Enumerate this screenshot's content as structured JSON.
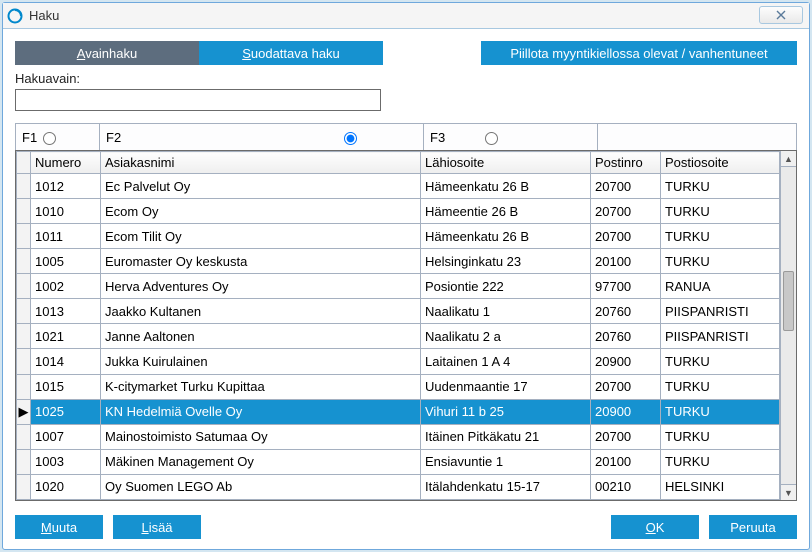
{
  "window": {
    "title": "Haku"
  },
  "tabs": {
    "avainhaku": {
      "underline": "A",
      "rest": "vainhaku"
    },
    "suodattava": {
      "underline": "S",
      "rest": "uodattava haku"
    },
    "piilota": "Piillota myyntikiellossa olevat / vanhentuneet"
  },
  "search": {
    "label": "Hakuavain:",
    "value": ""
  },
  "radios": {
    "f1": "F1",
    "f2": "F2",
    "f3": "F3",
    "selected": "f2"
  },
  "columns": {
    "numero": "Numero",
    "asiakasnimi": "Asiakasnimi",
    "lahiosoite": "Lähiosoite",
    "postinro": "Postinro",
    "postiosoite": "Postiosoite",
    "widths": {
      "marker": 14,
      "numero": 70,
      "asiakasnimi": 320,
      "lahiosoite": 170,
      "postinro": 70,
      "postiosoite": 120
    }
  },
  "rows": [
    {
      "numero": "1012",
      "asiakasnimi": "Ec Palvelut Oy",
      "lahiosoite": "Hämeenkatu 26 B",
      "postinro": "20700",
      "postiosoite": "TURKU"
    },
    {
      "numero": "1010",
      "asiakasnimi": "Ecom Oy",
      "lahiosoite": "Hämeentie 26 B",
      "postinro": "20700",
      "postiosoite": "TURKU"
    },
    {
      "numero": "1011",
      "asiakasnimi": "Ecom Tilit Oy",
      "lahiosoite": "Hämeenkatu 26 B",
      "postinro": "20700",
      "postiosoite": "TURKU"
    },
    {
      "numero": "1005",
      "asiakasnimi": "Euromaster Oy keskusta",
      "lahiosoite": "Helsinginkatu 23",
      "postinro": "20100",
      "postiosoite": "TURKU"
    },
    {
      "numero": "1002",
      "asiakasnimi": "Herva Adventures Oy",
      "lahiosoite": "Posiontie 222",
      "postinro": "97700",
      "postiosoite": "RANUA"
    },
    {
      "numero": "1013",
      "asiakasnimi": "Jaakko Kultanen",
      "lahiosoite": "Naalikatu 1",
      "postinro": "20760",
      "postiosoite": "PIISPANRISTI"
    },
    {
      "numero": "1021",
      "asiakasnimi": "Janne Aaltonen",
      "lahiosoite": "Naalikatu 2 a",
      "postinro": "20760",
      "postiosoite": "PIISPANRISTI"
    },
    {
      "numero": "1014",
      "asiakasnimi": "Jukka Kuirulainen",
      "lahiosoite": "Laitainen 1 A 4",
      "postinro": "20900",
      "postiosoite": "TURKU"
    },
    {
      "numero": "1015",
      "asiakasnimi": "K-citymarket Turku Kupittaa",
      "lahiosoite": "Uudenmaantie 17",
      "postinro": "20700",
      "postiosoite": "TURKU"
    },
    {
      "numero": "1025",
      "asiakasnimi": "KN Hedelmiä Ovelle Oy",
      "lahiosoite": "Vihuri 11 b 25",
      "postinro": "20900",
      "postiosoite": "TURKU",
      "selected": true
    },
    {
      "numero": "1007",
      "asiakasnimi": "Mainostoimisto Satumaa Oy",
      "lahiosoite": "Itäinen Pitkäkatu 21",
      "postinro": "20700",
      "postiosoite": "TURKU"
    },
    {
      "numero": "1003",
      "asiakasnimi": "Mäkinen Management Oy",
      "lahiosoite": "Ensiavuntie 1",
      "postinro": "20100",
      "postiosoite": "TURKU"
    },
    {
      "numero": "1020",
      "asiakasnimi": "Oy Suomen LEGO Ab",
      "lahiosoite": "Itälahdenkatu 15-17",
      "postinro": "00210",
      "postiosoite": "HELSINKI"
    }
  ],
  "footer": {
    "muuta": {
      "underline": "M",
      "rest": "uuta"
    },
    "lisaa": {
      "underline": "L",
      "rest": "isää"
    },
    "ok": {
      "underline": "O",
      "rest": "K"
    },
    "peruuta": "Peruuta"
  },
  "colors": {
    "accent": "#1692d0",
    "tab_gray": "#5d6d7e",
    "border": "#a5b0c0"
  }
}
